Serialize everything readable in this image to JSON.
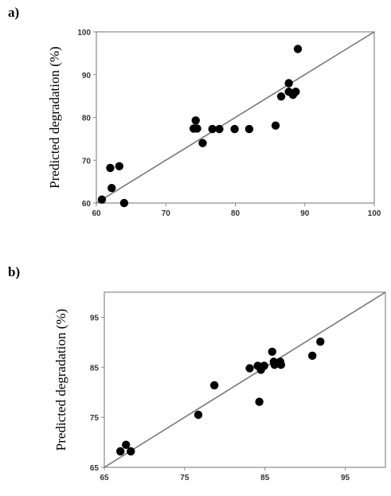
{
  "chart_data": [
    {
      "panel_label": "a)",
      "type": "scatter",
      "ylabel": "Predicted degradation (%)",
      "xlabel": "",
      "xlim": [
        60,
        100
      ],
      "ylim": [
        60,
        100
      ],
      "xticks": [
        60,
        70,
        80,
        90,
        100
      ],
      "yticks": [
        60,
        70,
        80,
        90,
        100
      ],
      "reference_line": {
        "from": [
          60,
          60
        ],
        "to": [
          100,
          100
        ]
      },
      "grid": false,
      "points": [
        {
          "x": 60.8,
          "y": 60.8
        },
        {
          "x": 64.0,
          "y": 60.0
        },
        {
          "x": 62.0,
          "y": 68.2
        },
        {
          "x": 63.3,
          "y": 68.6
        },
        {
          "x": 62.2,
          "y": 63.5
        },
        {
          "x": 74.0,
          "y": 77.4
        },
        {
          "x": 74.5,
          "y": 77.4
        },
        {
          "x": 74.3,
          "y": 79.3
        },
        {
          "x": 75.3,
          "y": 74.0
        },
        {
          "x": 76.7,
          "y": 77.3
        },
        {
          "x": 77.7,
          "y": 77.3
        },
        {
          "x": 79.9,
          "y": 77.3
        },
        {
          "x": 82.0,
          "y": 77.3
        },
        {
          "x": 85.8,
          "y": 78.1
        },
        {
          "x": 86.6,
          "y": 84.9
        },
        {
          "x": 87.7,
          "y": 86.0
        },
        {
          "x": 87.7,
          "y": 88.0
        },
        {
          "x": 88.3,
          "y": 85.3
        },
        {
          "x": 88.7,
          "y": 86.0
        },
        {
          "x": 89.0,
          "y": 96.0
        }
      ]
    },
    {
      "panel_label": "b)",
      "type": "scatter",
      "ylabel": "Predicted degradation (%)",
      "xlabel": "",
      "xlim": [
        65,
        100
      ],
      "ylim": [
        65,
        100
      ],
      "xticks": [
        65,
        75,
        85,
        95
      ],
      "yticks": [
        65,
        75,
        85,
        95
      ],
      "reference_line": {
        "from": [
          65,
          65
        ],
        "to": [
          100,
          100
        ]
      },
      "grid": false,
      "points": [
        {
          "x": 67.0,
          "y": 68.2
        },
        {
          "x": 67.7,
          "y": 69.5
        },
        {
          "x": 68.3,
          "y": 68.2
        },
        {
          "x": 76.7,
          "y": 75.5
        },
        {
          "x": 78.7,
          "y": 81.4
        },
        {
          "x": 83.1,
          "y": 84.8
        },
        {
          "x": 84.1,
          "y": 85.3
        },
        {
          "x": 84.5,
          "y": 84.5
        },
        {
          "x": 84.9,
          "y": 85.3
        },
        {
          "x": 84.3,
          "y": 78.1
        },
        {
          "x": 85.9,
          "y": 88.1
        },
        {
          "x": 86.1,
          "y": 86.1
        },
        {
          "x": 86.2,
          "y": 85.5
        },
        {
          "x": 86.9,
          "y": 86.1
        },
        {
          "x": 87.0,
          "y": 85.5
        },
        {
          "x": 90.9,
          "y": 87.3
        },
        {
          "x": 91.9,
          "y": 90.1
        }
      ]
    }
  ]
}
